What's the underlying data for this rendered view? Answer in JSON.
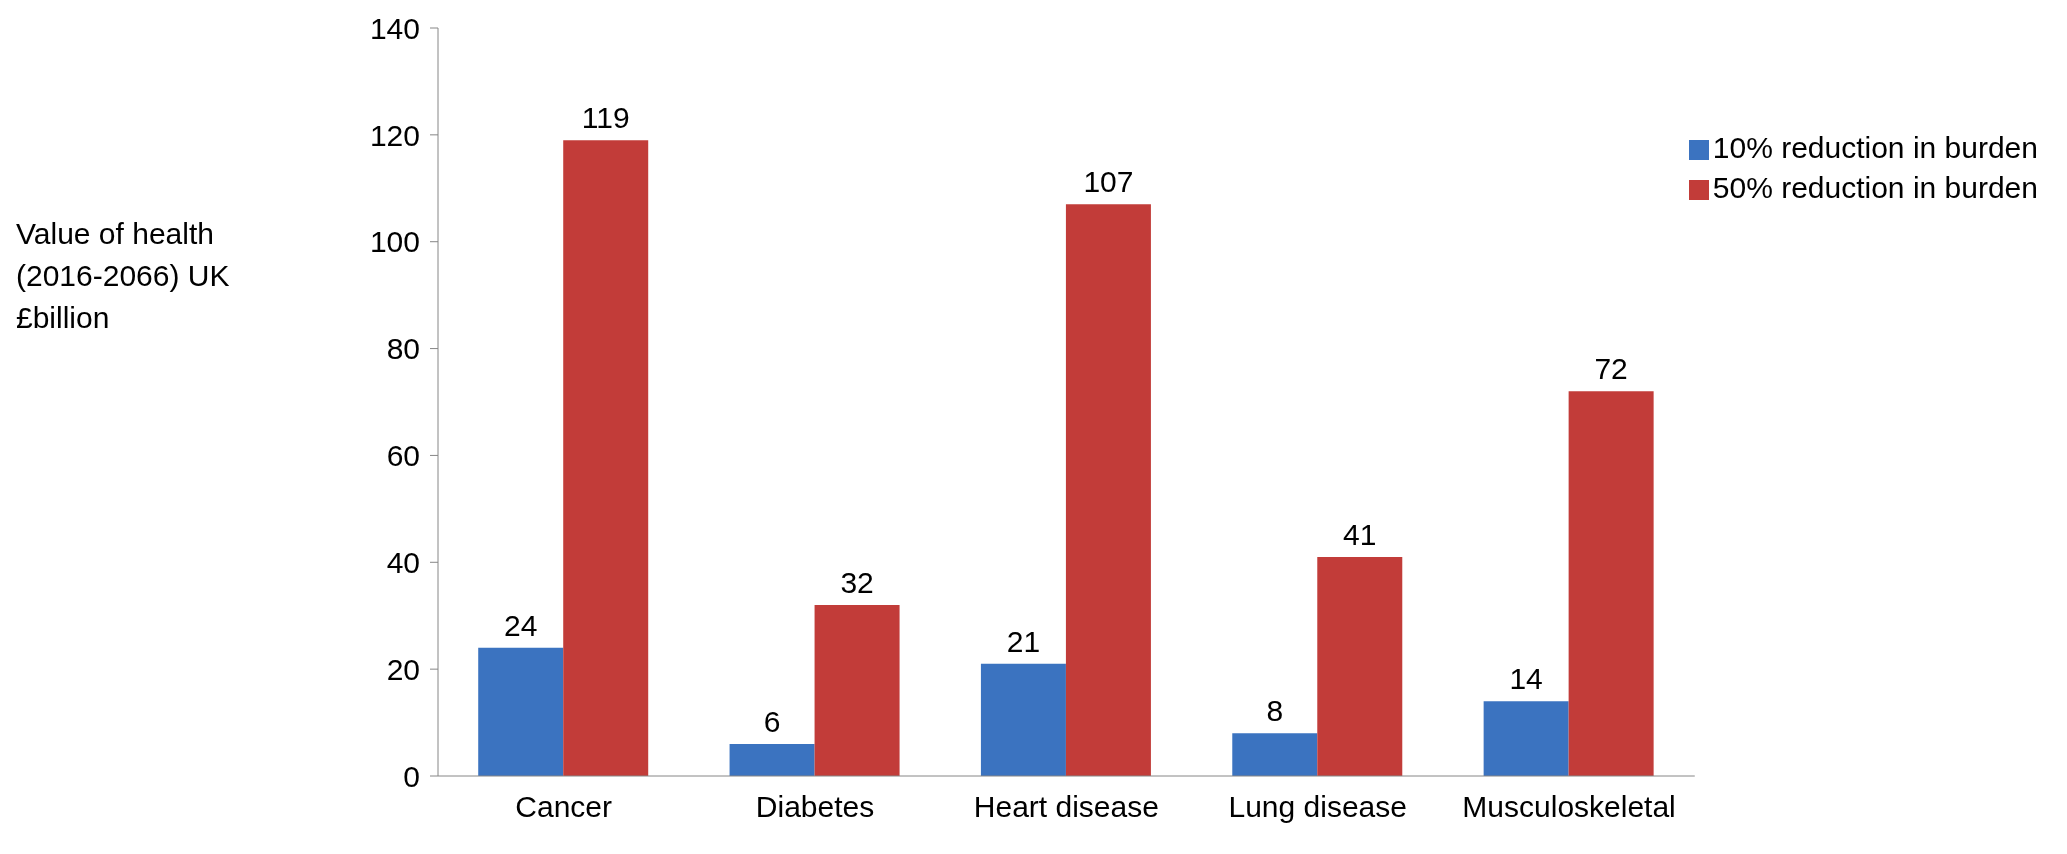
{
  "chart_data": {
    "type": "bar",
    "ylabel": "Value of health (2016-2066) UK £billion",
    "categories": [
      "Cancer",
      "Diabetes",
      "Heart disease",
      "Lung disease",
      "Musculoskeletal"
    ],
    "series": [
      {
        "name": "10% reduction in burden",
        "color": "#3b73c0",
        "values": [
          24,
          6,
          21,
          8,
          14
        ]
      },
      {
        "name": "50% reduction in burden",
        "color": "#c23c39",
        "values": [
          119,
          32,
          107,
          41,
          72
        ]
      }
    ],
    "ylim": [
      0,
      140
    ],
    "yticks": [
      0,
      20,
      40,
      60,
      80,
      100,
      120,
      140
    ],
    "data_labels": true,
    "grid": false,
    "legend": "top right"
  }
}
